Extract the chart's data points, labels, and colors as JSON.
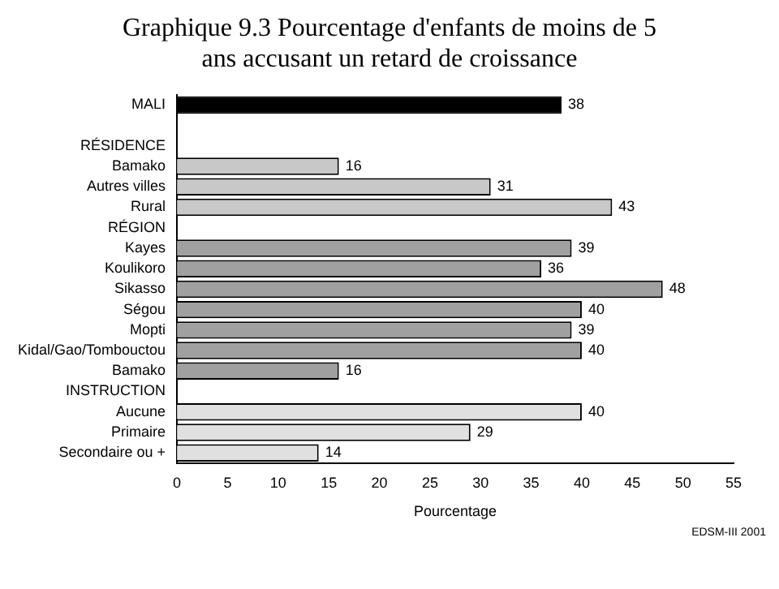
{
  "chart_data": {
    "type": "bar",
    "orientation": "horizontal",
    "title": "Graphique 9.3  Pourcentage d'enfants de moins de 5 ans accusant un retard de croissance",
    "xlabel": "Pourcentage",
    "categories": [
      "MALI",
      null,
      "RÉSIDENCE",
      "Bamako",
      "Autres villes",
      "Rural",
      "RÉGION",
      "Kayes",
      "Koulikoro",
      "Sikasso",
      "Ségou",
      "Mopti",
      "Kidal/Gao/Tombouctou",
      "Bamako",
      "INSTRUCTION",
      "Aucune",
      "Primaire",
      "Secondaire ou +"
    ],
    "values": [
      38,
      null,
      null,
      16,
      31,
      43,
      null,
      39,
      36,
      48,
      40,
      39,
      40,
      16,
      null,
      40,
      29,
      14
    ],
    "colors": [
      "#000000",
      "#ffffff",
      "#ffffff",
      "#c8c8c8",
      "#c8c8c8",
      "#c8c8c8",
      "#ffffff",
      "#a0a0a0",
      "#a0a0a0",
      "#a0a0a0",
      "#a0a0a0",
      "#a0a0a0",
      "#a0a0a0",
      "#a0a0a0",
      "#ffffff",
      "#e0e0e0",
      "#e0e0e0",
      "#e0e0e0"
    ],
    "xlim": [
      0,
      55
    ],
    "xticks": [
      0,
      5,
      10,
      15,
      20,
      25,
      30,
      35,
      40,
      45,
      50,
      55
    ],
    "grid": false,
    "legend": false,
    "data_labels": true,
    "annotations": [
      "EDSM-III 2001"
    ]
  }
}
